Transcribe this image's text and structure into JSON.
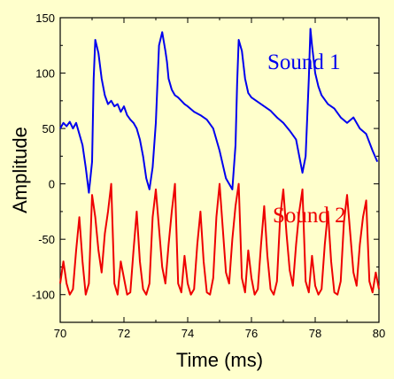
{
  "chart_data": {
    "type": "line",
    "xlabel": "Time (ms)",
    "ylabel": "Amplitude",
    "xlim": [
      70,
      80
    ],
    "ylim": [
      -125,
      150
    ],
    "x_ticks": [
      70,
      72,
      74,
      76,
      78,
      80
    ],
    "y_ticks": [
      -100,
      -50,
      0,
      50,
      100,
      150
    ],
    "grid": false,
    "background_color": "#ffffcc",
    "series": [
      {
        "name": "Sound 1",
        "color": "#0000ee",
        "x": [
          70.0,
          70.1,
          70.2,
          70.3,
          70.4,
          70.5,
          70.6,
          70.7,
          70.8,
          70.9,
          71.0,
          71.05,
          71.1,
          71.2,
          71.3,
          71.4,
          71.5,
          71.6,
          71.7,
          71.8,
          71.9,
          72.0,
          72.1,
          72.2,
          72.3,
          72.4,
          72.5,
          72.6,
          72.7,
          72.8,
          72.9,
          73.0,
          73.1,
          73.2,
          73.3,
          73.35,
          73.4,
          73.5,
          73.6,
          73.7,
          73.8,
          73.9,
          74.0,
          74.2,
          74.4,
          74.6,
          74.8,
          75.0,
          75.2,
          75.4,
          75.5,
          75.55,
          75.6,
          75.7,
          75.8,
          75.9,
          76.0,
          76.2,
          76.4,
          76.6,
          76.8,
          77.0,
          77.2,
          77.4,
          77.5,
          77.6,
          77.7,
          77.8,
          77.85,
          77.9,
          78.0,
          78.1,
          78.2,
          78.4,
          78.6,
          78.8,
          79.0,
          79.2,
          79.4,
          79.6,
          79.8,
          79.95
        ],
        "values": [
          50,
          55,
          52,
          56,
          50,
          55,
          45,
          35,
          15,
          -8,
          20,
          95,
          130,
          118,
          95,
          80,
          72,
          75,
          70,
          72,
          65,
          70,
          62,
          58,
          55,
          50,
          40,
          25,
          5,
          -5,
          15,
          55,
          125,
          137,
          120,
          110,
          95,
          85,
          80,
          78,
          75,
          72,
          70,
          65,
          62,
          58,
          50,
          30,
          5,
          -5,
          35,
          90,
          130,
          120,
          95,
          82,
          78,
          74,
          70,
          66,
          60,
          55,
          48,
          40,
          25,
          10,
          25,
          95,
          140,
          125,
          100,
          88,
          80,
          72,
          68,
          60,
          55,
          60,
          50,
          45,
          30,
          20
        ]
      },
      {
        "name": "Sound 2",
        "color": "#ee0000",
        "x": [
          70.0,
          70.1,
          70.2,
          70.3,
          70.4,
          70.5,
          70.6,
          70.7,
          70.8,
          70.9,
          71.0,
          71.1,
          71.2,
          71.3,
          71.4,
          71.5,
          71.6,
          71.7,
          71.8,
          71.9,
          72.0,
          72.1,
          72.2,
          72.3,
          72.4,
          72.5,
          72.6,
          72.7,
          72.8,
          72.9,
          73.0,
          73.1,
          73.2,
          73.3,
          73.4,
          73.5,
          73.6,
          73.7,
          73.8,
          73.9,
          74.0,
          74.1,
          74.2,
          74.3,
          74.4,
          74.5,
          74.6,
          74.7,
          74.8,
          74.9,
          75.0,
          75.1,
          75.2,
          75.3,
          75.4,
          75.5,
          75.6,
          75.7,
          75.8,
          75.9,
          76.0,
          76.1,
          76.2,
          76.3,
          76.4,
          76.5,
          76.6,
          76.7,
          76.8,
          76.9,
          77.0,
          77.1,
          77.2,
          77.3,
          77.4,
          77.5,
          77.6,
          77.7,
          77.8,
          77.9,
          78.0,
          78.1,
          78.2,
          78.3,
          78.4,
          78.5,
          78.6,
          78.7,
          78.8,
          78.9,
          79.0,
          79.1,
          79.2,
          79.3,
          79.4,
          79.5,
          79.6,
          79.7,
          79.8,
          79.9,
          80.0
        ],
        "values": [
          -90,
          -70,
          -90,
          -100,
          -95,
          -60,
          -30,
          -70,
          -100,
          -90,
          -10,
          -30,
          -60,
          -80,
          -45,
          -25,
          0,
          -90,
          -100,
          -70,
          -85,
          -100,
          -98,
          -60,
          -25,
          -70,
          -95,
          -100,
          -90,
          -30,
          -5,
          -40,
          -75,
          -90,
          -55,
          -25,
          0,
          -90,
          -98,
          -65,
          -90,
          -100,
          -95,
          -55,
          -25,
          -70,
          -98,
          -100,
          -85,
          -30,
          0,
          -40,
          -80,
          -90,
          -50,
          -20,
          0,
          -85,
          -98,
          -60,
          -85,
          -100,
          -95,
          -55,
          -20,
          -65,
          -95,
          -100,
          -88,
          -30,
          -5,
          -45,
          -78,
          -92,
          -55,
          -25,
          -5,
          -88,
          -98,
          -65,
          -92,
          -100,
          -95,
          -55,
          -25,
          -70,
          -98,
          -100,
          -88,
          -35,
          -10,
          -45,
          -80,
          -92,
          -55,
          -30,
          -15,
          -88,
          -98,
          -80,
          -95
        ]
      }
    ]
  }
}
